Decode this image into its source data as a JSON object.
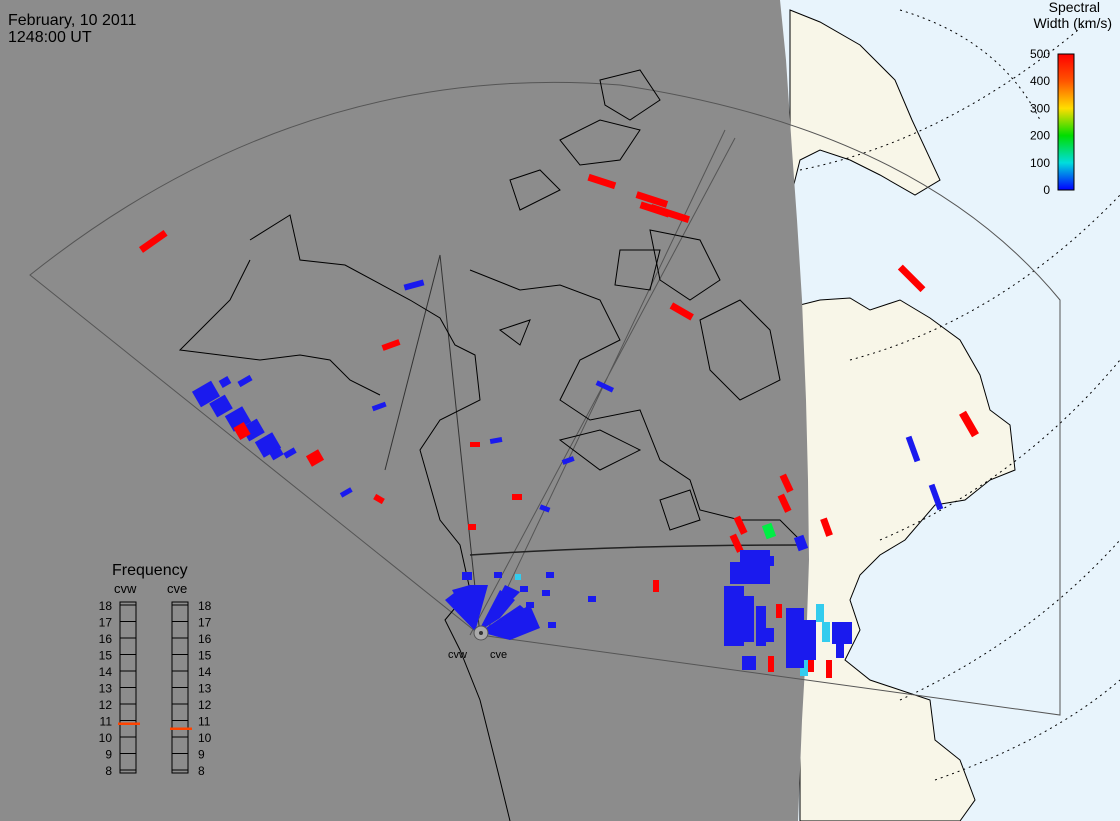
{
  "header": {
    "date": "February, 10 2011",
    "time": "1248:00 UT"
  },
  "colorbar": {
    "title_line1": "Spectral",
    "title_line2": "Width (km/s)",
    "ticks": [
      "500",
      "400",
      "300",
      "200",
      "100",
      "0"
    ],
    "colors": [
      "#ff0000",
      "#ff6000",
      "#ffcc00",
      "#00dd00",
      "#00dddd",
      "#0000ff"
    ]
  },
  "frequency": {
    "title": "Frequency",
    "stations": [
      {
        "name": "cvw",
        "value": 10.8
      },
      {
        "name": "cve",
        "value": 10.5
      }
    ],
    "ticks": [
      "18",
      "17",
      "16",
      "15",
      "14",
      "13",
      "12",
      "11",
      "10",
      "9",
      "8"
    ],
    "marker_color": "#ff4400"
  },
  "radar_sites": [
    {
      "label": "cvw"
    },
    {
      "label": "cve"
    }
  ],
  "colors": {
    "night_shade": "#8c8c8c",
    "land_day": "#f8f6e8",
    "ocean_day": "#e8f4fc",
    "echo_low": "#1a1aee",
    "echo_high": "#ff0000"
  }
}
